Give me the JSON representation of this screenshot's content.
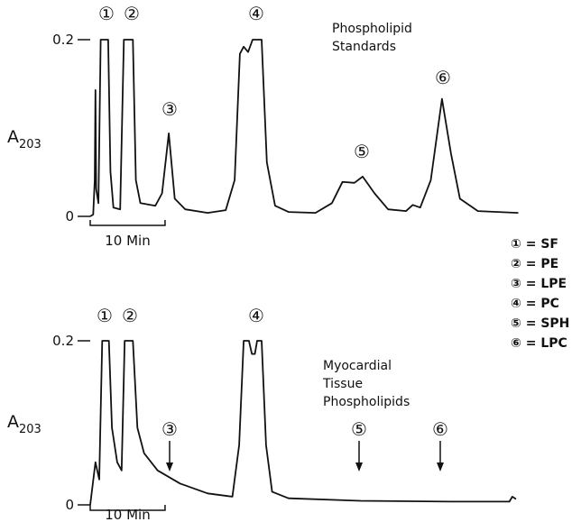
{
  "chart_data": [
    {
      "type": "line",
      "title": [
        "Phospholipid",
        "Standards"
      ],
      "y_label": {
        "main": "A",
        "sub": "203"
      },
      "x": [
        0,
        0.4,
        0.6,
        0.7,
        0.8,
        1.1,
        1.4,
        2.4,
        2.7,
        3.1,
        4.0,
        4.5,
        5.7,
        6.1,
        6.7,
        8.7,
        9.6,
        10.5,
        11.3,
        12.7,
        15.7,
        18.1,
        19.3,
        20.0,
        20.5,
        21.1,
        21.7,
        22.9,
        23.6,
        24.7,
        26.5,
        30.1,
        32.3,
        33.7,
        35.3,
        36.4,
        38.0,
        39.8,
        42.2,
        43.1,
        44.1,
        45.5,
        47.0,
        48.2,
        49.4,
        51.8,
        57.2
      ],
      "values": [
        0,
        0.002,
        0.041,
        0.143,
        0.031,
        0.015,
        0.2,
        0.2,
        0.051,
        0.01,
        0.008,
        0.2,
        0.2,
        0.041,
        0.015,
        0.012,
        0.026,
        0.094,
        0.02,
        0.008,
        0.004,
        0.007,
        0.041,
        0.184,
        0.192,
        0.186,
        0.2,
        0.2,
        0.061,
        0.012,
        0.005,
        0.004,
        0.015,
        0.039,
        0.038,
        0.045,
        0.026,
        0.008,
        0.006,
        0.013,
        0.01,
        0.041,
        0.133,
        0.071,
        0.02,
        0.006,
        0.004
      ],
      "color": "#111111",
      "xlim": [
        0,
        57.5
      ],
      "ylim": [
        0,
        0.2
      ],
      "yticks": [
        0,
        0.2
      ],
      "scale_bar": {
        "value": 10,
        "label": "10 Min"
      },
      "peak_labels": [
        "①",
        "②",
        "③",
        "④",
        "⑤",
        "⑥"
      ]
    },
    {
      "type": "line",
      "title": [
        "Myocardial",
        "Tissue",
        "Phospholipids"
      ],
      "y_label": {
        "main": "A",
        "sub": "203"
      },
      "x": [
        0,
        0.7,
        1.2,
        1.6,
        2.5,
        2.9,
        3.6,
        4.2,
        4.6,
        5.7,
        6.3,
        7.2,
        9.0,
        12.0,
        15.7,
        19.0,
        19.9,
        20.5,
        21.2,
        21.6,
        22.0,
        22.3,
        22.9,
        23.5,
        24.3,
        26.5,
        36.1,
        48.2,
        56.0,
        56.4,
        56.9
      ],
      "values": [
        0,
        0.052,
        0.031,
        0.2,
        0.2,
        0.094,
        0.052,
        0.042,
        0.2,
        0.2,
        0.094,
        0.063,
        0.042,
        0.026,
        0.014,
        0.01,
        0.073,
        0.2,
        0.2,
        0.184,
        0.184,
        0.2,
        0.2,
        0.073,
        0.016,
        0.008,
        0.005,
        0.004,
        0.004,
        0.01,
        0.007
      ],
      "color": "#111111",
      "xlim": [
        0,
        57.5
      ],
      "ylim": [
        0,
        0.2
      ],
      "yticks": [
        0,
        0.2
      ],
      "scale_bar": {
        "value": 10,
        "label": "10 Min"
      },
      "peak_labels": [
        "①",
        "②",
        "③",
        "④",
        "⑤",
        "⑥"
      ]
    }
  ],
  "legend": [
    "① = SF",
    "② = PE",
    "③ = LPE",
    "④ = PC",
    "⑤ = SPH",
    "⑥ = LPC"
  ]
}
